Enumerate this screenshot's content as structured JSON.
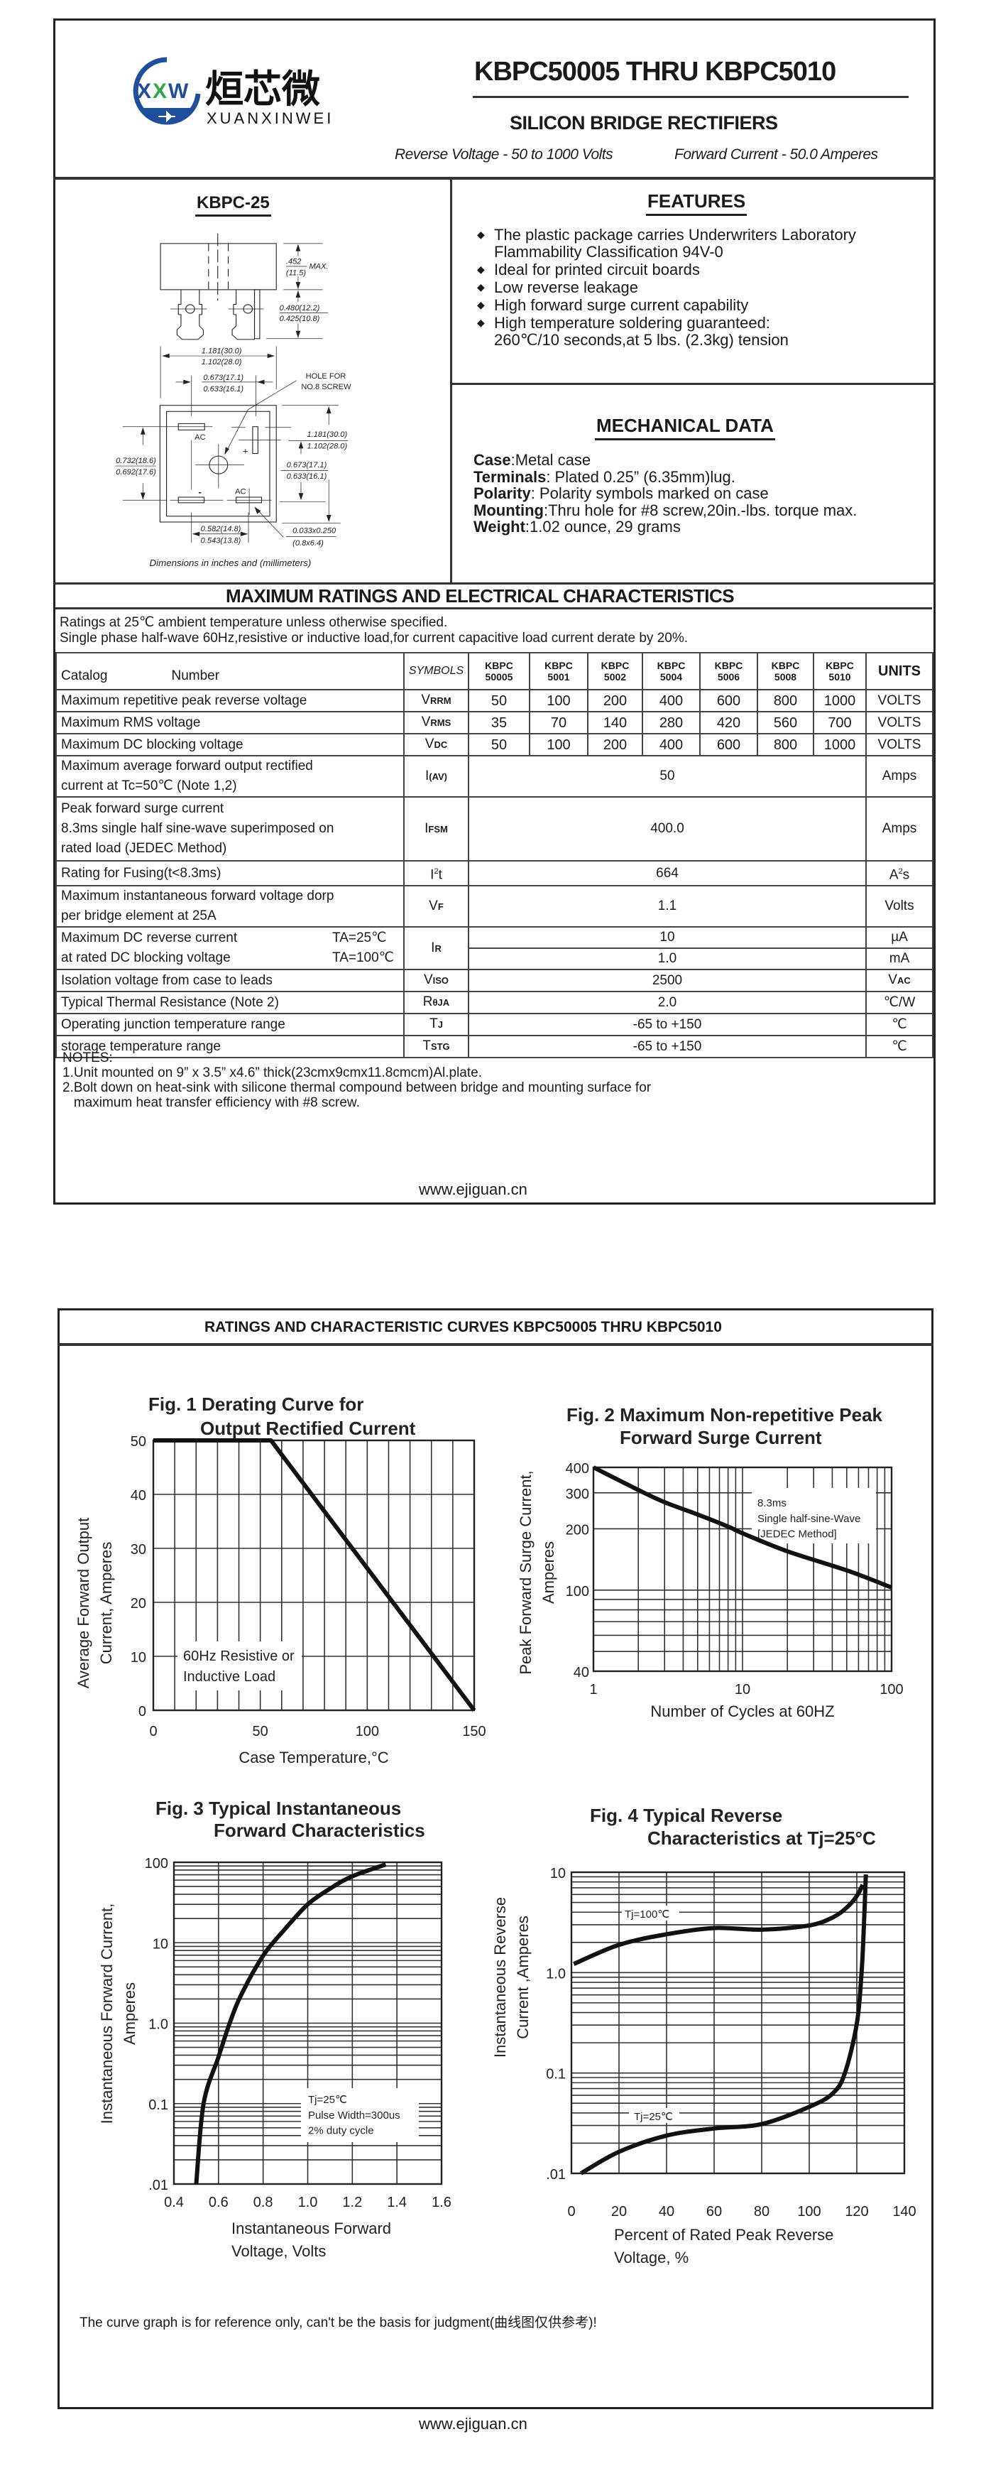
{
  "header": {
    "logo": {
      "mark": "XXW",
      "chinese_name": "烜芯微",
      "pinyin": "XUANXINWEI",
      "brand_color": "#1f4e9a",
      "accent_color": "#2aa84a"
    },
    "title": "KBPC50005 THRU KBPC5010",
    "subtitle": "SILICON BRIDGE RECTIFIERS",
    "reverse_voltage": "Reverse Voltage - 50 to 1000 Volts",
    "forward_current": "Forward Current - 50.0 Amperes"
  },
  "package": {
    "name": "KBPC-25",
    "dims": {
      "height_top": ".452",
      "height_bottom": "(11.5)",
      "height_note": "MAX.",
      "lead_top": "0.480(12.2)",
      "lead_bottom": "0.425(10.8)",
      "width_top": "1.181(30.0)",
      "width_bottom": "1.102(28.0)",
      "pitch_top": "0.673(17.1)",
      "pitch_bottom": "0.633(16.1)",
      "hole_line1": "HOLE FOR",
      "hole_line2": "NO.8 SCREW",
      "side_top": "1.181(30.0)",
      "side_bottom": "1.102(28.0)",
      "vpitch_top": "0.673(17.1)",
      "vpitch_bottom": "0.633(16.1)",
      "left_top": "0.732(18.6)",
      "left_bottom": "0.692(17.6)",
      "bottom_top": "0.582(14.8)",
      "bottom_bottom": "0.543(13.8)",
      "term_top": "0.033x0.250",
      "term_bottom": "(0.8x6.4)",
      "label_ac1": "AC",
      "label_ac2": "AC",
      "label_plus": "+",
      "label_minus": "-"
    },
    "caption": "Dimensions in inches and (millimeters)"
  },
  "features": {
    "heading": "FEATURES",
    "items": [
      [
        "The plastic package carries Underwriters Laboratory",
        "Flammability Classification 94V-0"
      ],
      [
        "Ideal for printed circuit boards"
      ],
      [
        "Low reverse leakage"
      ],
      [
        "High forward surge current capability"
      ],
      [
        "High temperature soldering guaranteed:",
        "260℃/10 seconds,at 5 lbs. (2.3kg) tension"
      ]
    ]
  },
  "mechanical": {
    "heading": "MECHANICAL DATA",
    "items": [
      {
        "label": "Case",
        "value": ":Metal case"
      },
      {
        "label": "Terminals",
        "value": ": Plated 0.25”  (6.35mm)lug."
      },
      {
        "label": "Polarity",
        "value": ": Polarity symbols marked on case"
      },
      {
        "label": "Mounting",
        "value": ":Thru hole for #8 screw,20in.-lbs. torque max."
      },
      {
        "label": "Weight",
        "value": ":1.02 ounce, 29 grams"
      }
    ]
  },
  "ratings": {
    "heading": "MAXIMUM RATINGS AND ELECTRICAL CHARACTERISTICS",
    "note1": "Ratings at 25℃ ambient temperature unless otherwise specified.",
    "note2": "Single phase half-wave 60Hz,resistive or inductive load,for current capacitive load current derate by 20%.",
    "table": {
      "header": {
        "catalog": "Catalog",
        "number": "Number",
        "symbols": "SYMBOLS",
        "units": "UNITS",
        "models": [
          [
            "KBPC",
            "50005"
          ],
          [
            "KBPC",
            "5001"
          ],
          [
            "KBPC",
            "5002"
          ],
          [
            "KBPC",
            "5004"
          ],
          [
            "KBPC",
            "5006"
          ],
          [
            "KBPC",
            "5008"
          ],
          [
            "KBPC",
            "5010"
          ]
        ]
      },
      "rows": [
        {
          "param": [
            "Maximum repetitive peak reverse voltage"
          ],
          "symbol": {
            "main": "V",
            "sub": "RRM"
          },
          "values": [
            "50",
            "100",
            "200",
            "400",
            "600",
            "800",
            "1000"
          ],
          "unit": {
            "main": "VOLTS"
          }
        },
        {
          "param": [
            "Maximum RMS voltage"
          ],
          "symbol": {
            "main": "V",
            "sub": "RMS"
          },
          "values": [
            "35",
            "70",
            "140",
            "280",
            "420",
            "560",
            "700"
          ],
          "unit": {
            "main": "VOLTS"
          }
        },
        {
          "param": [
            "Maximum DC blocking voltage"
          ],
          "symbol": {
            "main": "V",
            "sub": "DC"
          },
          "values": [
            "50",
            "100",
            "200",
            "400",
            "600",
            "800",
            "1000"
          ],
          "unit": {
            "main": "VOLTS"
          }
        },
        {
          "param": [
            "Maximum average forward output rectified",
            "current at  Tc=50℃  (Note 1,2)"
          ],
          "symbol": {
            "main": "I",
            "sub": "(AV)"
          },
          "value": "50",
          "unit": {
            "main": "Amps"
          }
        },
        {
          "param": [
            "Peak forward surge current",
            "8.3ms single half sine-wave superimposed on",
            "rated load (JEDEC Method)"
          ],
          "symbol": {
            "main": "I",
            "sub": "FSM"
          },
          "value": "400.0",
          "unit": {
            "main": "Amps"
          }
        },
        {
          "param": [
            "Rating for Fusing(t<8.3ms)"
          ],
          "symbol": {
            "main": "I",
            "sup": "2",
            "tail": "t"
          },
          "value": "664",
          "unit": {
            "main": "A",
            "sup": "2",
            "tail": "s"
          }
        },
        {
          "param": [
            "Maximum instantaneous forward voltage dorp",
            "per bridge element at 25A"
          ],
          "symbol": {
            "main": "V",
            "sub": "F"
          },
          "value": "1.1",
          "unit": {
            "main": "Volts"
          }
        },
        {
          "param": [
            "Maximum DC reverse current",
            "at rated DC blocking voltage"
          ],
          "conds": [
            "TA=25℃",
            "TA=100℃"
          ],
          "symbol": {
            "main": "I",
            "sub": "R"
          },
          "split": [
            {
              "value": "10",
              "unit": "µA"
            },
            {
              "value": "1.0",
              "unit": "mA"
            }
          ]
        },
        {
          "param": [
            "Isolation voltage from case to leads"
          ],
          "symbol": {
            "main": "V",
            "sub": "ISO"
          },
          "value": "2500",
          "unit": {
            "main": "V",
            "sub": "AC"
          }
        },
        {
          "param": [
            "Typical Thermal Resistance (Note 2)"
          ],
          "symbol": {
            "main": "R",
            "sub": "θJA"
          },
          "value": "2.0",
          "unit": {
            "main": "℃/W"
          }
        },
        {
          "param": [
            "Operating junction temperature range"
          ],
          "symbol": {
            "main": "T",
            "sub": "J"
          },
          "value": "-65 to +150",
          "unit": {
            "main": "℃"
          }
        },
        {
          "param": [
            "storage temperature range"
          ],
          "symbol": {
            "main": "T",
            "sub": "STG"
          },
          "value": "-65 to +150",
          "unit": {
            "main": "℃"
          }
        }
      ]
    },
    "notes": {
      "heading": "NOTES:",
      "lines": [
        "1.Unit mounted on 9”  x 3.5”  x4.6”  thick(23cmx9cmx11.8cmcm)Al.plate.",
        "2.Bolt down on heat-sink with silicone thermal compound between bridge and mounting surface for",
        "   maximum heat transfer efficiency with #8 screw."
      ]
    }
  },
  "page1_footer": "www.ejiguan.cn",
  "curves_heading": "RATINGS AND CHARACTERISTIC CURVES KBPC50005 THRU KBPC5010",
  "disclaimer": "The curve graph is for reference only, can't be the basis for judgment(曲线图仅供参考)!",
  "page2_footer": "www.ejiguan.cn",
  "chart_data": [
    {
      "type": "line",
      "title": [
        "Fig. 1 Derating Curve for",
        "Output Rectified Current"
      ],
      "xlabel": "Case Temperature,°C",
      "ylabel": [
        "Average Forward Output",
        "Current, Amperes"
      ],
      "x_scale": "linear",
      "y_scale": "linear",
      "xlim": [
        0,
        150
      ],
      "ylim": [
        0,
        50
      ],
      "xticks": [
        0,
        50,
        100,
        150
      ],
      "xtick_labels": [
        "0",
        "50",
        "100",
        "150"
      ],
      "yticks": [
        0,
        10,
        20,
        30,
        40,
        50
      ],
      "ytick_labels": [
        "0",
        "10",
        "20",
        "30",
        "40",
        "50"
      ],
      "grid": true,
      "x_grid_step": 10,
      "y_grid_step": 10,
      "annotations": [
        {
          "lines": [
            "60Hz Resistive or",
            "Inductive Load"
          ]
        }
      ],
      "series": [
        {
          "x": [
            0,
            55,
            150
          ],
          "y": [
            50,
            50,
            0
          ],
          "smooth": false
        }
      ]
    },
    {
      "type": "line",
      "title": [
        "Fig. 2 Maximum Non-repetitive Peak",
        "Forward Surge Current"
      ],
      "xlabel": "Number of Cycles at 60HZ",
      "ylabel": [
        "Peak Forward Surge Current,",
        "Amperes"
      ],
      "x_scale": "log",
      "y_scale": "log",
      "xlim": [
        1,
        100
      ],
      "ylim": [
        40,
        400
      ],
      "xticks": [
        1,
        10,
        100
      ],
      "xtick_labels": [
        "1",
        "10",
        "100"
      ],
      "yticks": [
        40,
        100,
        200,
        300,
        400
      ],
      "ytick_labels": [
        "40",
        "100",
        "200",
        "300",
        "400"
      ],
      "grid": true,
      "annotations": [
        {
          "lines": [
            "8.3ms",
            "Single half-sine-Wave",
            "[JEDEC Method]"
          ]
        }
      ],
      "series": [
        {
          "x": [
            1,
            2,
            3,
            5,
            8,
            10,
            20,
            50,
            100
          ],
          "y": [
            400,
            310,
            270,
            235,
            205,
            190,
            155,
            125,
            103
          ],
          "smooth": true
        }
      ]
    },
    {
      "type": "line",
      "title": [
        "Fig. 3 Typical Instantaneous",
        "Forward Characteristics"
      ],
      "xlabel": [
        "Instantaneous Forward",
        "Voltage, Volts"
      ],
      "ylabel": [
        "Instantaneous Forward Current,",
        "Amperes"
      ],
      "x_scale": "linear",
      "y_scale": "log",
      "xlim": [
        0.4,
        1.6
      ],
      "ylim": [
        0.01,
        100
      ],
      "xticks": [
        0.4,
        0.6,
        0.8,
        1.0,
        1.2,
        1.4,
        1.6
      ],
      "xtick_labels": [
        "0.4",
        "0.6",
        "0.8",
        "1.0",
        "1.2",
        "1.4",
        "1.6"
      ],
      "yticks": [
        0.01,
        0.1,
        1,
        10,
        100
      ],
      "ytick_labels": [
        ".01",
        "0.1",
        "1.0",
        "10",
        "100"
      ],
      "grid": true,
      "x_grid_step": 0.2,
      "annotations": [
        {
          "lines": [
            "Tj=25℃",
            "Pulse Width=300us",
            "2% duty cycle"
          ]
        }
      ],
      "series": [
        {
          "x": [
            0.5,
            0.533,
            0.6,
            0.65,
            0.7,
            0.8,
            0.9,
            1.0,
            1.1,
            1.2,
            1.35
          ],
          "y": [
            0.01,
            0.1,
            0.38,
            1.0,
            2.2,
            6.9,
            15,
            30,
            47,
            67,
            94
          ],
          "smooth": true
        }
      ]
    },
    {
      "type": "line",
      "title": [
        "Fig. 4 Typical Reverse",
        "Characteristics at  Tj=25°C"
      ],
      "xlabel": [
        "Percent of Rated Peak Reverse",
        "Voltage, %"
      ],
      "ylabel": [
        "Instantaneous Reverse",
        "Current ,Amperes"
      ],
      "x_scale": "linear",
      "y_scale": "log",
      "xlim": [
        0,
        140
      ],
      "ylim": [
        0.01,
        10
      ],
      "xticks": [
        0,
        20,
        40,
        60,
        80,
        100,
        120,
        140
      ],
      "xtick_labels": [
        "0",
        "20",
        "40",
        "60",
        "80",
        "100",
        "120",
        "140"
      ],
      "yticks": [
        0.01,
        0.1,
        1,
        10
      ],
      "ytick_labels": [
        ".01",
        "0.1",
        "1.0",
        "10"
      ],
      "grid": true,
      "x_grid_step": 20,
      "annotations": [
        {
          "lines": [
            "Tj=100℃"
          ]
        },
        {
          "lines": [
            "Tj=25℃"
          ]
        }
      ],
      "series": [
        {
          "name": "Tj=100℃",
          "x": [
            1,
            20,
            40,
            60,
            80,
            100,
            110,
            116,
            120,
            122.5
          ],
          "y": [
            1.22,
            1.89,
            2.41,
            2.78,
            2.68,
            2.95,
            3.56,
            4.5,
            5.8,
            7.5
          ],
          "smooth": true
        },
        {
          "name": "Tj=25℃",
          "x": [
            4,
            20,
            40,
            60,
            80,
            100,
            110,
            115,
            120,
            122,
            123,
            123.8
          ],
          "y": [
            0.01,
            0.0164,
            0.0238,
            0.028,
            0.031,
            0.046,
            0.063,
            0.1,
            0.31,
            1.0,
            3.0,
            9.5
          ],
          "smooth": true
        }
      ]
    }
  ]
}
